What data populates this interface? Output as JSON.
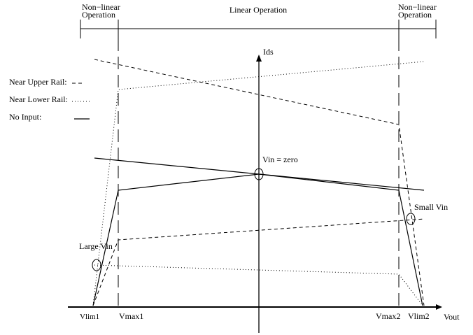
{
  "regions": {
    "left": [
      "Non−linear",
      "Operation"
    ],
    "center": "Linear Operation",
    "right": [
      "Non−linear",
      "Operation"
    ]
  },
  "legend": {
    "upper_rail": "Near Upper Rail:",
    "lower_rail": "Near Lower Rail:",
    "no_input": "No Input:"
  },
  "axes": {
    "y_label": "Ids",
    "x_label": "Vout",
    "x_ticks": [
      "Vlim1",
      "Vmax1",
      "Vmax2",
      "Vlim2"
    ]
  },
  "annotations": {
    "vin_zero": "Vin = zero",
    "small_vin": "Small Vin",
    "large_vin": "Large Vin"
  }
}
